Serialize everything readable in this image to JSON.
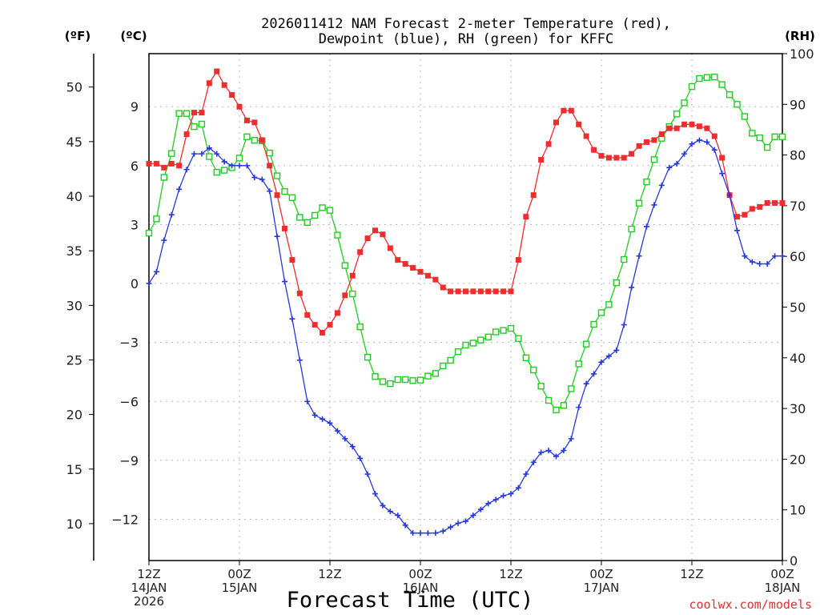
{
  "title_line1": "2026011412 NAM Forecast 2-meter Temperature (red),",
  "title_line2": "Dewpoint (blue), RH (green) for KFFC",
  "credit": "coolwx.com/models",
  "colors": {
    "temperature": "#ee2d2d",
    "dewpoint": "#2638dd",
    "rh": "#22cc22",
    "credit": "#e03030"
  },
  "chart_data": {
    "type": "line",
    "title": "2026011412 NAM Forecast 2-meter Temperature (red), Dewpoint (blue), RH (green) for KFFC",
    "xlabel": "Forecast Time (UTC)",
    "x_unit": "forecast hour",
    "x": [
      0,
      1,
      2,
      3,
      4,
      5,
      6,
      7,
      8,
      9,
      10,
      11,
      12,
      13,
      14,
      15,
      16,
      17,
      18,
      19,
      20,
      21,
      22,
      23,
      24,
      25,
      26,
      27,
      28,
      29,
      30,
      31,
      32,
      33,
      34,
      35,
      36,
      37,
      38,
      39,
      40,
      41,
      42,
      43,
      44,
      45,
      46,
      47,
      48,
      49,
      50,
      51,
      52,
      53,
      54,
      55,
      56,
      57,
      58,
      59,
      60,
      61,
      62,
      63,
      64,
      65,
      66,
      67,
      68,
      69,
      70,
      71,
      72,
      73,
      74,
      75,
      76,
      77,
      78,
      79,
      80,
      81,
      82,
      83,
      84
    ],
    "xlim": [
      0,
      84
    ],
    "x_ticks": [
      {
        "x": 0,
        "lines": [
          "12Z",
          "14JAN",
          "2026"
        ]
      },
      {
        "x": 12,
        "lines": [
          "00Z",
          "15JAN"
        ]
      },
      {
        "x": 24,
        "lines": [
          "12Z"
        ]
      },
      {
        "x": 36,
        "lines": [
          "00Z",
          "16JAN"
        ]
      },
      {
        "x": 48,
        "lines": [
          "12Z"
        ]
      },
      {
        "x": 60,
        "lines": [
          "00Z",
          "17JAN"
        ]
      },
      {
        "x": 72,
        "lines": [
          "12Z"
        ]
      },
      {
        "x": 84,
        "lines": [
          "00Z",
          "18JAN"
        ]
      }
    ],
    "axes": {
      "fahrenheit": {
        "label": "(ºF)",
        "ticks": [
          10,
          15,
          20,
          25,
          30,
          35,
          40,
          45,
          50
        ]
      },
      "celsius": {
        "label": "(ºC)",
        "ticks": [
          -12,
          -9,
          -6,
          -3,
          0,
          3,
          6,
          9
        ],
        "ylim": [
          -14.1,
          11.7
        ]
      },
      "rh": {
        "label": "(RH)",
        "ticks": [
          0,
          10,
          20,
          30,
          40,
          50,
          60,
          70,
          80,
          90,
          100
        ],
        "ylim": [
          0,
          100
        ]
      }
    },
    "series": [
      {
        "name": "Temperature",
        "axis": "celsius",
        "marker": "filled-square",
        "values": [
          6.1,
          6.1,
          5.9,
          6.1,
          6.0,
          7.6,
          8.7,
          8.7,
          10.2,
          10.8,
          10.1,
          9.6,
          9.0,
          8.3,
          8.2,
          7.3,
          6.0,
          4.5,
          2.8,
          1.2,
          -0.5,
          -1.6,
          -2.1,
          -2.5,
          -2.1,
          -1.5,
          -0.6,
          0.4,
          1.6,
          2.3,
          2.7,
          2.5,
          1.8,
          1.2,
          1.0,
          0.8,
          0.6,
          0.4,
          0.2,
          -0.2,
          -0.4,
          -0.4,
          -0.4,
          -0.4,
          -0.4,
          -0.4,
          -0.4,
          -0.4,
          -0.4,
          1.2,
          3.4,
          4.5,
          6.3,
          7.1,
          8.2,
          8.8,
          8.8,
          8.1,
          7.5,
          6.8,
          6.5,
          6.4,
          6.4,
          6.4,
          6.6,
          7.0,
          7.2,
          7.3,
          7.6,
          7.9,
          7.9,
          8.1,
          8.1,
          8.0,
          7.9,
          7.5,
          6.4,
          4.5,
          3.4,
          3.5,
          3.8,
          3.9,
          4.1,
          4.1,
          4.1
        ]
      },
      {
        "name": "Dewpoint",
        "axis": "celsius",
        "marker": "plus",
        "values": [
          0.0,
          0.6,
          2.2,
          3.5,
          4.8,
          5.8,
          6.6,
          6.6,
          6.9,
          6.6,
          6.2,
          6.0,
          6.0,
          6.0,
          5.4,
          5.3,
          4.7,
          2.4,
          0.1,
          -1.8,
          -3.9,
          -6.0,
          -6.7,
          -6.9,
          -7.1,
          -7.5,
          -7.9,
          -8.3,
          -8.9,
          -9.7,
          -10.7,
          -11.3,
          -11.6,
          -11.8,
          -12.3,
          -12.7,
          -12.7,
          -12.7,
          -12.7,
          -12.6,
          -12.4,
          -12.2,
          -12.1,
          -11.8,
          -11.5,
          -11.2,
          -11.0,
          -10.8,
          -10.7,
          -10.4,
          -9.7,
          -9.1,
          -8.6,
          -8.5,
          -8.8,
          -8.5,
          -7.9,
          -6.3,
          -5.1,
          -4.6,
          -4.0,
          -3.7,
          -3.4,
          -2.1,
          -0.2,
          1.4,
          2.9,
          4.0,
          5.0,
          5.9,
          6.1,
          6.6,
          7.1,
          7.3,
          7.2,
          6.8,
          5.6,
          4.5,
          2.7,
          1.4,
          1.1,
          1.0,
          1.0,
          1.4,
          1.4
        ]
      },
      {
        "name": "RH",
        "axis": "rh",
        "marker": "open-square",
        "values": [
          64.6,
          67.4,
          75.6,
          80.3,
          88.2,
          88.2,
          85.6,
          86.1,
          79.7,
          76.6,
          77.0,
          77.5,
          79.4,
          83.6,
          82.9,
          82.8,
          80.4,
          75.9,
          72.8,
          71.6,
          67.7,
          66.7,
          68.1,
          69.6,
          69.1,
          64.2,
          58.2,
          52.6,
          46.1,
          40.1,
          36.3,
          35.3,
          34.9,
          35.7,
          35.7,
          35.5,
          35.6,
          36.4,
          36.9,
          38.4,
          39.5,
          41.2,
          42.5,
          42.9,
          43.5,
          44.1,
          45.1,
          45.4,
          45.8,
          43.8,
          40.0,
          37.6,
          34.4,
          31.6,
          29.7,
          30.6,
          33.9,
          38.8,
          42.7,
          46.6,
          48.9,
          50.5,
          54.8,
          59.4,
          65.4,
          70.5,
          74.7,
          79.1,
          83.3,
          85.6,
          88.1,
          90.3,
          93.5,
          95.1,
          95.3,
          95.4,
          93.9,
          91.9,
          90.0,
          87.6,
          84.3,
          83.4,
          81.5,
          83.6,
          83.6
        ]
      }
    ]
  }
}
